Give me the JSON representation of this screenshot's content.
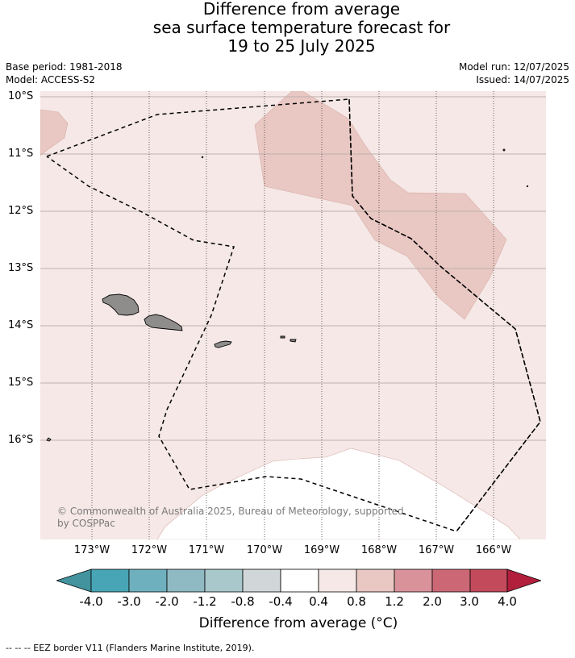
{
  "title": {
    "line1": "Difference from average",
    "line2": "sea surface temperature forecast for",
    "line3": "19 to 25 July 2025"
  },
  "meta": {
    "base_period": "Base period: 1981-2018",
    "model": "Model: ACCESS-S2",
    "model_run": "Model run: 12/07/2025",
    "issued": "Issued: 14/07/2025"
  },
  "map": {
    "lat_labels": [
      "10°S",
      "11°S",
      "12°S",
      "13°S",
      "14°S",
      "15°S",
      "16°S"
    ],
    "lon_labels": [
      "173°W",
      "172°W",
      "171°W",
      "170°W",
      "169°W",
      "168°W",
      "167°W",
      "166°W"
    ],
    "background_color": "#f5e8e6",
    "warm_anomaly_color": "#e9c7c2",
    "neutral_color": "#ffffff",
    "land_color": "#8f8c8c",
    "copyright": "© Commonwealth of Australia 2025, Bureau of Meteorology, supported",
    "copyright_line2": "by COSPPac"
  },
  "colorbar": {
    "labels": [
      "-4.0",
      "-3.0",
      "-2.0",
      "-1.2",
      "-0.8",
      "-0.4",
      "0.4",
      "0.8",
      "1.2",
      "2.0",
      "3.0",
      "4.0"
    ],
    "colors": [
      "#42939e",
      "#48a5b5",
      "#6fb0bf",
      "#8fbac4",
      "#a9c8cc",
      "#d1d7d8",
      "#ffffff",
      "#f5e8e6",
      "#e9c7c2",
      "#d9929a",
      "#cc6876",
      "#c34a5b",
      "#b11f3c"
    ],
    "title": "Difference from average (°C)"
  },
  "eez_note": "--  --  -- EEZ border V11 (Flanders Marine Institute, 2019)."
}
